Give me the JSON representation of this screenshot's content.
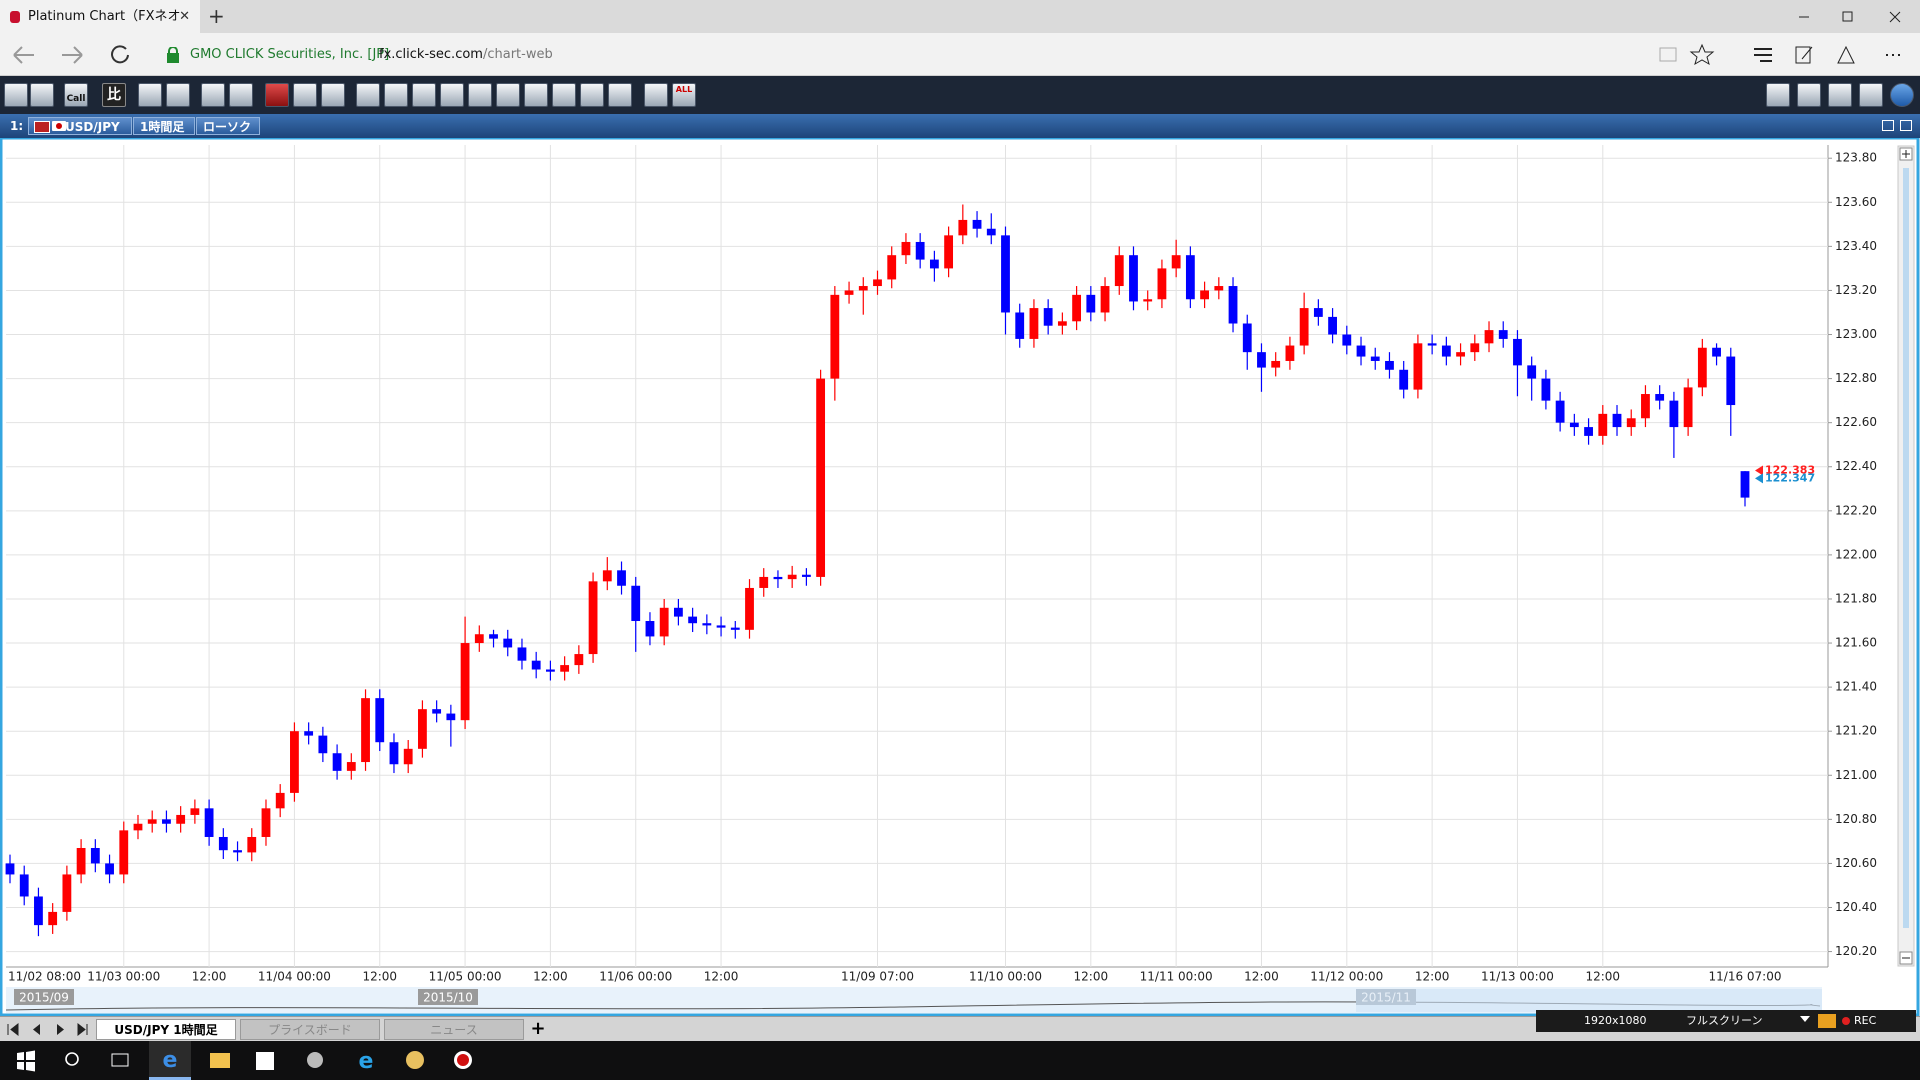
{
  "browser": {
    "tab_title": "Platinum Chart（FXネオ",
    "site_identity": "GMO CLICK Securities, Inc. [JP]",
    "url_host": "fx.click-sec.com",
    "url_path": "/chart-web"
  },
  "toolbar": {
    "labels": [
      "Call",
      "比",
      "ALL"
    ]
  },
  "chart_header": {
    "window_index": "1:",
    "symbol": "USD/JPY",
    "timeframe": "1時間足",
    "chart_style": "ローソク"
  },
  "chart_data": {
    "type": "candlestick",
    "categories": [
      "11/02 08:00",
      null,
      null,
      null,
      null,
      null,
      null,
      null,
      "11/03 00:00",
      null,
      null,
      null,
      null,
      null,
      "12:00",
      null,
      null,
      null,
      null,
      null,
      "11/04 00:00",
      null,
      null,
      null,
      null,
      null,
      "12:00",
      null,
      null,
      null,
      null,
      null,
      "11/05 00:00",
      null,
      null,
      null,
      null,
      null,
      "12:00",
      null,
      null,
      null,
      null,
      null,
      "11/06 00:00",
      null,
      null,
      null,
      null,
      null,
      "12:00",
      null,
      null,
      null,
      null,
      null,
      null,
      null,
      null,
      null,
      null,
      "11/09 07:00",
      null,
      null,
      null,
      null,
      null,
      null,
      null,
      null,
      "11/10 00:00",
      null,
      null,
      null,
      null,
      null,
      "12:00",
      null,
      null,
      null,
      null,
      null,
      "11/11 00:00",
      null,
      null,
      null,
      null,
      null,
      "12:00",
      null,
      null,
      null,
      null,
      null,
      "11/12 00:00",
      null,
      null,
      null,
      null,
      null,
      "12:00",
      null,
      null,
      null,
      null,
      null,
      "11/13 00:00",
      null,
      null,
      null,
      null,
      null,
      "12:00",
      null,
      null,
      null,
      null,
      null,
      null,
      null,
      null,
      null,
      "11/16 07:00"
    ],
    "open": [
      120.6,
      120.55,
      120.45,
      120.32,
      120.38,
      120.55,
      120.67,
      120.6,
      120.55,
      120.75,
      120.78,
      120.8,
      120.78,
      120.82,
      120.85,
      120.72,
      120.66,
      120.65,
      120.72,
      120.85,
      120.92,
      121.2,
      121.18,
      121.1,
      121.02,
      121.06,
      121.35,
      121.15,
      121.05,
      121.12,
      121.3,
      121.28,
      121.25,
      121.6,
      121.64,
      121.62,
      121.58,
      121.52,
      121.48,
      121.47,
      121.5,
      121.55,
      121.88,
      121.93,
      121.86,
      121.7,
      121.63,
      121.76,
      121.72,
      121.69,
      121.68,
      121.67,
      121.66,
      121.85,
      121.9,
      121.89,
      121.91,
      121.9,
      122.8,
      123.18,
      123.2,
      123.22,
      123.25,
      123.36,
      123.42,
      123.34,
      123.3,
      123.45,
      123.52,
      123.48,
      123.45,
      123.1,
      122.98,
      123.12,
      123.04,
      123.06,
      123.18,
      123.1,
      123.22,
      123.36,
      123.15,
      123.16,
      123.3,
      123.36,
      123.16,
      123.2,
      123.22,
      123.05,
      122.92,
      122.85,
      122.88,
      122.95,
      123.12,
      123.08,
      123.0,
      122.95,
      122.9,
      122.88,
      122.84,
      122.75,
      122.96,
      122.95,
      122.9,
      122.92,
      122.96,
      123.02,
      122.98,
      122.86,
      122.8,
      122.7,
      122.6,
      122.58,
      122.54,
      122.64,
      122.58,
      122.62,
      122.73,
      122.7,
      122.58,
      122.76,
      122.94,
      122.9,
      122.38
    ],
    "high": [
      120.64,
      120.59,
      120.49,
      120.42,
      120.59,
      120.71,
      120.71,
      120.64,
      120.79,
      120.82,
      120.84,
      120.84,
      120.86,
      120.89,
      120.89,
      120.76,
      120.7,
      120.76,
      120.89,
      120.96,
      121.24,
      121.24,
      121.22,
      121.14,
      121.1,
      121.39,
      121.39,
      121.19,
      121.16,
      121.34,
      121.34,
      121.32,
      121.72,
      121.68,
      121.66,
      121.66,
      121.62,
      121.56,
      121.52,
      121.54,
      121.59,
      121.92,
      121.99,
      121.97,
      121.9,
      121.74,
      121.8,
      121.8,
      121.76,
      121.73,
      121.72,
      121.7,
      121.89,
      121.94,
      121.93,
      121.95,
      121.94,
      122.84,
      123.22,
      123.24,
      123.26,
      123.29,
      123.4,
      123.46,
      123.46,
      123.38,
      123.49,
      123.59,
      123.56,
      123.55,
      123.49,
      123.14,
      123.16,
      123.16,
      123.1,
      123.22,
      123.22,
      123.26,
      123.4,
      123.4,
      123.2,
      123.34,
      123.43,
      123.4,
      123.24,
      123.26,
      123.26,
      123.09,
      122.96,
      122.92,
      122.99,
      123.19,
      123.16,
      123.12,
      123.04,
      122.99,
      122.94,
      122.92,
      122.88,
      123.0,
      123.0,
      122.99,
      122.96,
      123.0,
      123.06,
      123.06,
      123.02,
      122.9,
      122.84,
      122.74,
      122.64,
      122.62,
      122.68,
      122.68,
      122.66,
      122.77,
      122.77,
      122.74,
      122.8,
      122.98,
      122.96,
      122.94,
      122.38
    ],
    "low": [
      120.51,
      120.41,
      120.27,
      120.28,
      120.34,
      120.51,
      120.56,
      120.51,
      120.51,
      120.71,
      120.74,
      120.74,
      120.74,
      120.78,
      120.68,
      120.62,
      120.61,
      120.61,
      120.68,
      120.81,
      120.88,
      121.14,
      121.06,
      120.98,
      120.98,
      121.02,
      121.11,
      121.01,
      121.01,
      121.08,
      121.24,
      121.13,
      121.21,
      121.56,
      121.58,
      121.54,
      121.48,
      121.44,
      121.43,
      121.43,
      121.46,
      121.51,
      121.84,
      121.82,
      121.56,
      121.59,
      121.59,
      121.68,
      121.65,
      121.64,
      121.63,
      121.62,
      121.62,
      121.81,
      121.85,
      121.85,
      121.86,
      121.86,
      122.7,
      123.14,
      123.09,
      123.18,
      123.21,
      123.32,
      123.3,
      123.24,
      123.26,
      123.41,
      123.44,
      123.41,
      123.0,
      122.94,
      122.94,
      123.0,
      123.0,
      123.02,
      123.06,
      123.06,
      123.18,
      123.11,
      123.11,
      123.12,
      123.26,
      123.12,
      123.12,
      123.16,
      123.01,
      122.84,
      122.74,
      122.81,
      122.84,
      122.91,
      123.04,
      122.96,
      122.91,
      122.86,
      122.84,
      122.8,
      122.71,
      122.71,
      122.91,
      122.86,
      122.86,
      122.88,
      122.92,
      122.94,
      122.72,
      122.7,
      122.66,
      122.56,
      122.54,
      122.5,
      122.5,
      122.54,
      122.54,
      122.58,
      122.66,
      122.44,
      122.54,
      122.72,
      122.86,
      122.54,
      122.22
    ],
    "close": [
      120.55,
      120.45,
      120.32,
      120.38,
      120.55,
      120.67,
      120.6,
      120.55,
      120.75,
      120.78,
      120.8,
      120.78,
      120.82,
      120.85,
      120.72,
      120.66,
      120.65,
      120.72,
      120.85,
      120.92,
      121.2,
      121.18,
      121.1,
      121.02,
      121.06,
      121.35,
      121.15,
      121.05,
      121.12,
      121.3,
      121.28,
      121.25,
      121.6,
      121.64,
      121.62,
      121.58,
      121.52,
      121.48,
      121.47,
      121.5,
      121.55,
      121.88,
      121.93,
      121.86,
      121.7,
      121.63,
      121.76,
      121.72,
      121.69,
      121.68,
      121.67,
      121.66,
      121.85,
      121.9,
      121.89,
      121.91,
      121.9,
      122.8,
      123.18,
      123.2,
      123.22,
      123.25,
      123.36,
      123.42,
      123.34,
      123.3,
      123.45,
      123.52,
      123.48,
      123.45,
      123.1,
      122.98,
      123.12,
      123.04,
      123.06,
      123.18,
      123.1,
      123.22,
      123.36,
      123.15,
      123.16,
      123.3,
      123.36,
      123.16,
      123.2,
      123.22,
      123.05,
      122.92,
      122.85,
      122.88,
      122.95,
      123.12,
      123.08,
      123.0,
      122.95,
      122.9,
      122.88,
      122.84,
      122.75,
      122.96,
      122.95,
      122.9,
      122.92,
      122.96,
      123.02,
      122.98,
      122.86,
      122.8,
      122.7,
      122.6,
      122.58,
      122.54,
      122.64,
      122.58,
      122.62,
      122.73,
      122.7,
      122.58,
      122.76,
      122.94,
      122.9,
      122.68,
      122.26
    ],
    "up_color": "#ff0000",
    "down_color": "#0000ff",
    "ask": 122.383,
    "ask_color": "#ff2020",
    "bid": 122.347,
    "bid_color": "#1a8fd0",
    "ylim": [
      120.13,
      123.86
    ],
    "yticks": [
      {
        "value": 120.2,
        "label": "120.20"
      },
      {
        "value": 120.4,
        "label": "120.40"
      },
      {
        "value": 120.6,
        "label": "120.60"
      },
      {
        "value": 120.8,
        "label": "120.80"
      },
      {
        "value": 121.0,
        "label": "121.00"
      },
      {
        "value": 121.2,
        "label": "121.20"
      },
      {
        "value": 121.4,
        "label": "121.40"
      },
      {
        "value": 121.6,
        "label": "121.60"
      },
      {
        "value": 121.8,
        "label": "121.80"
      },
      {
        "value": 122.0,
        "label": "122.00"
      },
      {
        "value": 122.2,
        "label": "122.20"
      },
      {
        "value": 122.4,
        "label": "122.40"
      },
      {
        "value": 122.6,
        "label": "122.60"
      },
      {
        "value": 122.8,
        "label": "122.80"
      },
      {
        "value": 123.0,
        "label": "123.00"
      },
      {
        "value": 123.2,
        "label": "123.20"
      },
      {
        "value": 123.4,
        "label": "123.40"
      },
      {
        "value": 123.6,
        "label": "123.60"
      },
      {
        "value": 123.8,
        "label": "123.80"
      }
    ],
    "grid": true
  },
  "navigator": {
    "labels": [
      "2015/09",
      "2015/10",
      "2015/11"
    ]
  },
  "bottom_tabs": [
    "USD/JPY 1時間足",
    "プライスボード",
    "ニュース"
  ],
  "status_bar": {
    "resolution": "1920x1080",
    "mode": "フルスクリーン",
    "record": "REC"
  }
}
